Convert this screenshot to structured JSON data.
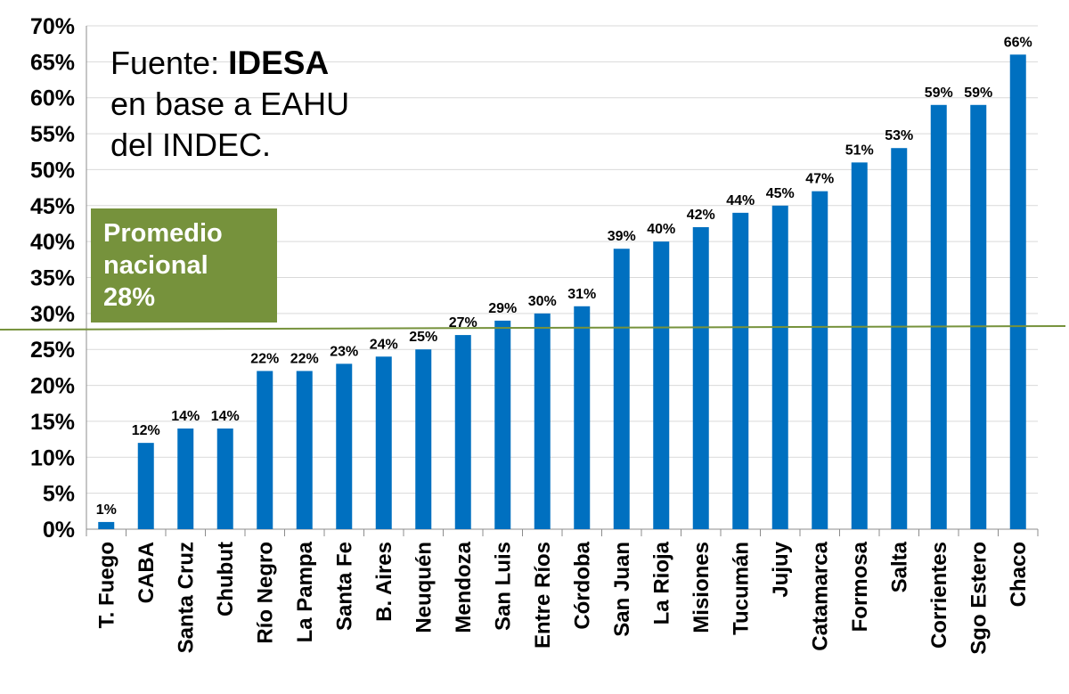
{
  "annotation": {
    "source_prefix": "Fuente: ",
    "source_brand": "IDESA",
    "source_line2": "en base a EAHU",
    "source_line3": "del INDEC.",
    "average_line1": "Promedio",
    "average_line2": "nacional",
    "average_value_label": "28%",
    "average_box_color": "#76923c"
  },
  "chart_data": {
    "type": "bar",
    "title": "",
    "xlabel": "",
    "ylabel": "",
    "ylim": [
      0,
      70
    ],
    "yticks": [
      "0%",
      "5%",
      "10%",
      "15%",
      "20%",
      "25%",
      "30%",
      "35%",
      "40%",
      "45%",
      "50%",
      "55%",
      "60%",
      "65%",
      "70%"
    ],
    "grid": true,
    "bar_color": "#0070c0",
    "reference_line": {
      "value": 28,
      "color": "#76923c"
    },
    "categories": [
      "T. Fuego",
      "CABA",
      "Santa Cruz",
      "Chubut",
      "Río Negro",
      "La Pampa",
      "Santa Fe",
      "B. Aires",
      "Neuquén",
      "Mendoza",
      "San Luis",
      "Entre Ríos",
      "Córdoba",
      "San Juan",
      "La Rioja",
      "Misiones",
      "Tucumán",
      "Jujuy",
      "Catamarca",
      "Formosa",
      "Salta",
      "Corrientes",
      "Sgo Estero",
      "Chaco"
    ],
    "values": [
      1,
      12,
      14,
      14,
      22,
      22,
      23,
      24,
      25,
      27,
      29,
      30,
      31,
      39,
      40,
      42,
      44,
      45,
      47,
      51,
      53,
      59,
      59,
      66
    ],
    "data_labels": [
      "1%",
      "12%",
      "14%",
      "14%",
      "22%",
      "22%",
      "23%",
      "24%",
      "25%",
      "27%",
      "29%",
      "30%",
      "31%",
      "39%",
      "40%",
      "42%",
      "44%",
      "45%",
      "47%",
      "51%",
      "53%",
      "59%",
      "59%",
      "66%"
    ]
  }
}
